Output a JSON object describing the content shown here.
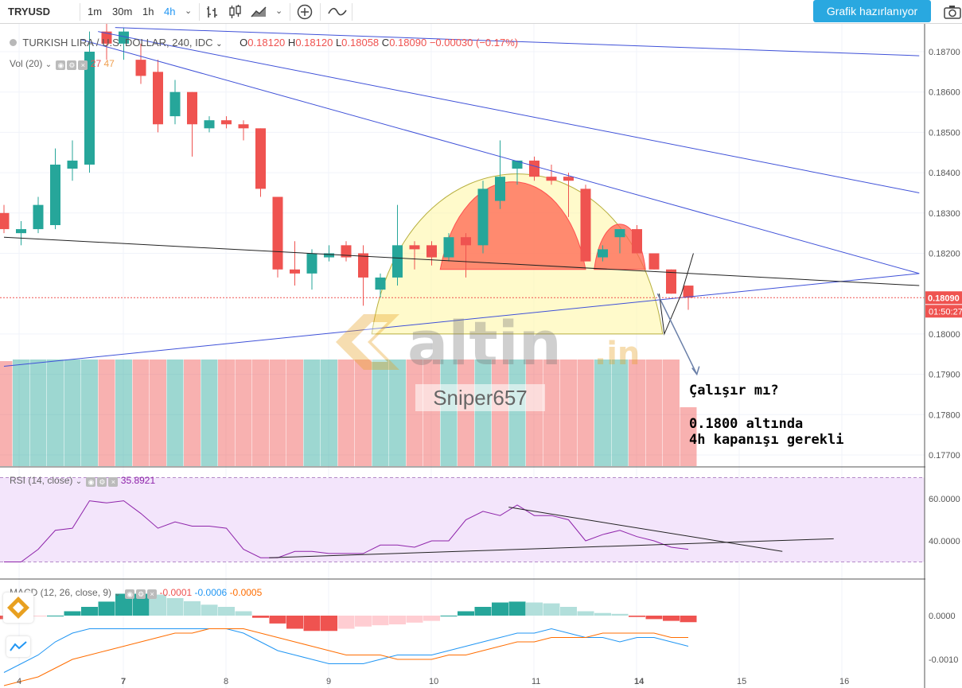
{
  "toolbar": {
    "symbol": "TRYUSD",
    "intervals": [
      "1m",
      "30m",
      "1h",
      "4h"
    ],
    "active_interval": "4h",
    "publish_label": "Grafik hazırlanıyor",
    "icons": [
      "chevron-down-icon",
      "bar-chart-icon",
      "candlestick-icon",
      "area-chart-icon",
      "plus-circle-icon",
      "compare-wave-icon",
      "camera-icon"
    ]
  },
  "legend": {
    "title": "TURKISH LIRA / U.S. DOLLAR, 240, IDC",
    "o_label": "O",
    "o_value": "0.18120",
    "h_label": "H",
    "h_value": "0.18120",
    "l_label": "L",
    "l_value": "0.18058",
    "c_label": "C",
    "c_value": "0.18090",
    "change": "−0.00030 (−0.17%)"
  },
  "volume_legend": {
    "name": "Vol (20)",
    "v1": "27",
    "v2": "47"
  },
  "rsi_legend": {
    "name": "RSI (14, close)",
    "value": "35.8921"
  },
  "macd_legend": {
    "name": "MACD (12, 26, close, 9)",
    "v1": "-0.0001",
    "v2": "-0.0006",
    "v3": "-0.0005"
  },
  "annotations": {
    "question": "Çalışır mı?",
    "line1": "0.1800 altında",
    "line2": "4h kapanışı gerekli"
  },
  "watermark": {
    "brand": "altin",
    "tld": ".in",
    "user": "Sniper657"
  },
  "colors": {
    "up": "#26a69a",
    "down": "#ef5350",
    "trend_blue": "#3f51d8",
    "rsi": "#8e24aa",
    "macd": "#2196f3",
    "signal": "#ff6d00"
  },
  "chart_data": [
    {
      "type": "candlestick",
      "title": "TURKISH LIRA / U.S. DOLLAR, 240, IDC",
      "x_tick_labels": [
        "4",
        "7",
        "8",
        "9",
        "10",
        "11",
        "14",
        "15",
        "16"
      ],
      "y_ticks": [
        "0.18700",
        "0.18600",
        "0.18500",
        "0.18400",
        "0.18300",
        "0.18200",
        "0.18000",
        "0.17900",
        "0.17800",
        "0.17700"
      ],
      "ylim": [
        0.1766,
        0.1875
      ],
      "last_price": "0.18090",
      "countdown": "01:50:27",
      "candles": [
        {
          "o": 0.183,
          "h": 0.1832,
          "l": 0.1825,
          "c": 0.1826
        },
        {
          "o": 0.1825,
          "h": 0.1828,
          "l": 0.1822,
          "c": 0.1826
        },
        {
          "o": 0.1826,
          "h": 0.1834,
          "l": 0.1825,
          "c": 0.1832
        },
        {
          "o": 0.1827,
          "h": 0.1846,
          "l": 0.1826,
          "c": 0.1842
        },
        {
          "o": 0.1841,
          "h": 0.1848,
          "l": 0.1838,
          "c": 0.1843
        },
        {
          "o": 0.1842,
          "h": 0.1875,
          "l": 0.184,
          "c": 0.187
        },
        {
          "o": 0.1875,
          "h": 0.1878,
          "l": 0.1868,
          "c": 0.1872
        },
        {
          "o": 0.1872,
          "h": 0.1876,
          "l": 0.1868,
          "c": 0.1875
        },
        {
          "o": 0.1868,
          "h": 0.1872,
          "l": 0.1862,
          "c": 0.1864
        },
        {
          "o": 0.1865,
          "h": 0.1868,
          "l": 0.185,
          "c": 0.1852
        },
        {
          "o": 0.1854,
          "h": 0.1863,
          "l": 0.1852,
          "c": 0.186
        },
        {
          "o": 0.186,
          "h": 0.186,
          "l": 0.1844,
          "c": 0.1852
        },
        {
          "o": 0.1851,
          "h": 0.1854,
          "l": 0.185,
          "c": 0.1853
        },
        {
          "o": 0.1853,
          "h": 0.1854,
          "l": 0.1851,
          "c": 0.1852
        },
        {
          "o": 0.1852,
          "h": 0.1853,
          "l": 0.1848,
          "c": 0.1851
        },
        {
          "o": 0.1851,
          "h": 0.1851,
          "l": 0.1834,
          "c": 0.1836
        },
        {
          "o": 0.1834,
          "h": 0.1834,
          "l": 0.1814,
          "c": 0.1816
        },
        {
          "o": 0.1816,
          "h": 0.1823,
          "l": 0.1812,
          "c": 0.1815
        },
        {
          "o": 0.1815,
          "h": 0.1821,
          "l": 0.1811,
          "c": 0.182
        },
        {
          "o": 0.1819,
          "h": 0.1822,
          "l": 0.1818,
          "c": 0.182
        },
        {
          "o": 0.1822,
          "h": 0.1823,
          "l": 0.1818,
          "c": 0.1819
        },
        {
          "o": 0.182,
          "h": 0.1822,
          "l": 0.1807,
          "c": 0.1814
        },
        {
          "o": 0.1811,
          "h": 0.1815,
          "l": 0.1809,
          "c": 0.1814
        },
        {
          "o": 0.1814,
          "h": 0.1832,
          "l": 0.1812,
          "c": 0.1822
        },
        {
          "o": 0.1822,
          "h": 0.1823,
          "l": 0.1816,
          "c": 0.1821
        },
        {
          "o": 0.1822,
          "h": 0.1823,
          "l": 0.1817,
          "c": 0.1819
        },
        {
          "o": 0.1819,
          "h": 0.1825,
          "l": 0.1818,
          "c": 0.1824
        },
        {
          "o": 0.1824,
          "h": 0.1825,
          "l": 0.1814,
          "c": 0.1822
        },
        {
          "o": 0.1822,
          "h": 0.1838,
          "l": 0.182,
          "c": 0.1836
        },
        {
          "o": 0.1833,
          "h": 0.1848,
          "l": 0.1831,
          "c": 0.1839
        },
        {
          "o": 0.1841,
          "h": 0.1843,
          "l": 0.1837,
          "c": 0.1843
        },
        {
          "o": 0.1843,
          "h": 0.1844,
          "l": 0.1838,
          "c": 0.1839
        },
        {
          "o": 0.1839,
          "h": 0.1842,
          "l": 0.1837,
          "c": 0.1838
        },
        {
          "o": 0.1839,
          "h": 0.184,
          "l": 0.1829,
          "c": 0.1838
        },
        {
          "o": 0.1836,
          "h": 0.1837,
          "l": 0.1818,
          "c": 0.1818
        },
        {
          "o": 0.1819,
          "h": 0.1822,
          "l": 0.1818,
          "c": 0.1821
        },
        {
          "o": 0.1824,
          "h": 0.1826,
          "l": 0.182,
          "c": 0.1826
        },
        {
          "o": 0.1826,
          "h": 0.1827,
          "l": 0.182,
          "c": 0.182
        },
        {
          "o": 0.182,
          "h": 0.182,
          "l": 0.1816,
          "c": 0.1816
        },
        {
          "o": 0.1816,
          "h": 0.1816,
          "l": 0.181,
          "c": 0.181
        },
        {
          "o": 0.1812,
          "h": 0.1812,
          "l": 0.1806,
          "c": 0.1809
        }
      ],
      "volume": [
        {
          "v": 0.66,
          "up": false
        },
        {
          "v": 0.67,
          "up": true
        },
        {
          "v": 0.67,
          "up": true
        },
        {
          "v": 0.67,
          "up": true
        },
        {
          "v": 0.67,
          "up": true
        },
        {
          "v": 0.67,
          "up": true
        },
        {
          "v": 0.67,
          "up": false
        },
        {
          "v": 0.67,
          "up": true
        },
        {
          "v": 0.67,
          "up": false
        },
        {
          "v": 0.67,
          "up": false
        },
        {
          "v": 0.67,
          "up": true
        },
        {
          "v": 0.67,
          "up": false
        },
        {
          "v": 0.67,
          "up": true
        },
        {
          "v": 0.67,
          "up": false
        },
        {
          "v": 0.67,
          "up": false
        },
        {
          "v": 0.67,
          "up": false
        },
        {
          "v": 0.67,
          "up": false
        },
        {
          "v": 0.67,
          "up": false
        },
        {
          "v": 0.67,
          "up": true
        },
        {
          "v": 0.67,
          "up": true
        },
        {
          "v": 0.67,
          "up": false
        },
        {
          "v": 0.67,
          "up": false
        },
        {
          "v": 0.67,
          "up": true
        },
        {
          "v": 0.67,
          "up": true
        },
        {
          "v": 0.67,
          "up": false
        },
        {
          "v": 0.67,
          "up": false
        },
        {
          "v": 0.67,
          "up": true
        },
        {
          "v": 0.67,
          "up": false
        },
        {
          "v": 0.67,
          "up": true
        },
        {
          "v": 0.67,
          "up": false
        },
        {
          "v": 0.67,
          "up": true
        },
        {
          "v": 0.67,
          "up": false
        },
        {
          "v": 0.67,
          "up": false
        },
        {
          "v": 0.67,
          "up": false
        },
        {
          "v": 0.67,
          "up": false
        },
        {
          "v": 0.67,
          "up": true
        },
        {
          "v": 0.67,
          "up": true
        },
        {
          "v": 0.67,
          "up": false
        },
        {
          "v": 0.67,
          "up": false
        },
        {
          "v": 0.67,
          "up": false
        },
        {
          "v": 0.37,
          "up": false
        }
      ],
      "trendlines": [
        {
          "kind": "blue",
          "from": [
            6.5,
            0.1876
          ],
          "to": [
            53.5,
            0.1869
          ]
        },
        {
          "kind": "blue",
          "from": [
            5.5,
            0.1875
          ],
          "to": [
            53.5,
            0.1835
          ]
        },
        {
          "kind": "blue",
          "from": [
            4.5,
            0.1873
          ],
          "to": [
            53.5,
            0.1815
          ]
        },
        {
          "kind": "blue",
          "from": [
            0,
            0.1792
          ],
          "to": [
            53.5,
            0.1815
          ]
        },
        {
          "kind": "black",
          "from": [
            0,
            0.1824
          ],
          "to": [
            53.5,
            0.1812
          ]
        }
      ],
      "patterns": [
        {
          "kind": "cup",
          "label": "",
          "x0": 21.5,
          "x1": 38.5,
          "top": 0.1847,
          "bottom": 0.18
        },
        {
          "kind": "head",
          "x0": 25.5,
          "x1": 34.0,
          "top": 0.1843,
          "base": 0.1816
        },
        {
          "kind": "shoulder",
          "x0": 34.5,
          "x1": 37.5,
          "top": 0.1829,
          "base": 0.1816
        }
      ],
      "projection": {
        "from": [
          38.2,
          0.181
        ],
        "to": [
          40.5,
          0.179
        ]
      },
      "zigzag": [
        [
          38.3,
          0.181
        ],
        [
          38.6,
          0.18
        ],
        [
          39.6,
          0.181
        ],
        [
          40.3,
          0.182
        ]
      ]
    },
    {
      "type": "line",
      "title": "RSI (14, close)",
      "y_ticks": [
        "60.0000",
        "40.0000"
      ],
      "ylim": [
        25,
        70
      ],
      "band": [
        30,
        70
      ],
      "series": [
        {
          "name": "RSI",
          "values": [
            30,
            30,
            36,
            45,
            46,
            59,
            58,
            59,
            53,
            46,
            49,
            47,
            47,
            46,
            36,
            32,
            32,
            35,
            35,
            34,
            34,
            34,
            38,
            38,
            37,
            40,
            40,
            50,
            54,
            52,
            57,
            52,
            52,
            50,
            40,
            43,
            45,
            42,
            40,
            37,
            36
          ]
        }
      ],
      "trendlines": [
        {
          "from": [
            15.5,
            32
          ],
          "to": [
            48.5,
            41
          ]
        },
        {
          "from": [
            29.5,
            56
          ],
          "to": [
            45.5,
            35
          ]
        }
      ]
    },
    {
      "type": "bar",
      "title": "MACD (12, 26, close, 9)",
      "y_ticks": [
        "0.0000",
        "-0.0010"
      ],
      "ylim": [
        -0.00125,
        0.00065
      ],
      "histogram": [
        -8e-05,
        -6e-05,
        -2e-05,
        0.0,
        0.0001,
        0.0002,
        0.00032,
        0.0005,
        0.0005,
        0.00048,
        0.0004,
        0.00033,
        0.00025,
        0.0002,
        0.0001,
        -5e-05,
        -0.00018,
        -0.0003,
        -0.00035,
        -0.00035,
        -0.0003,
        -0.00025,
        -0.00022,
        -0.0002,
        -0.00016,
        -0.00012,
        0.0,
        0.0001,
        0.0002,
        0.0003,
        0.00032,
        0.0003,
        0.00028,
        0.0002,
        0.0001,
        6e-05,
        4e-05,
        -3e-05,
        -8e-05,
        -0.00012,
        -0.00015
      ],
      "macd": [
        -0.0013,
        -0.0011,
        -0.0009,
        -0.0006,
        -0.0004,
        -0.0003,
        -0.0003,
        -0.0003,
        -0.0003,
        -0.0003,
        -0.0003,
        -0.0003,
        -0.0003,
        -0.0003,
        -0.0004,
        -0.0006,
        -0.0008,
        -0.0009,
        -0.001,
        -0.0011,
        -0.0011,
        -0.0011,
        -0.001,
        -0.0009,
        -0.0009,
        -0.0009,
        -0.0008,
        -0.0007,
        -0.0006,
        -0.0005,
        -0.0004,
        -0.0004,
        -0.0003,
        -0.0004,
        -0.0005,
        -0.0005,
        -0.0006,
        -0.0005,
        -0.0005,
        -0.0006,
        -0.0007
      ],
      "signal": [
        -0.0016,
        -0.0015,
        -0.0014,
        -0.0012,
        -0.001,
        -0.0009,
        -0.0008,
        -0.0007,
        -0.0006,
        -0.0005,
        -0.0004,
        -0.0004,
        -0.0003,
        -0.0003,
        -0.0003,
        -0.0004,
        -0.0005,
        -0.0006,
        -0.0007,
        -0.0008,
        -0.0009,
        -0.0009,
        -0.0009,
        -0.001,
        -0.001,
        -0.001,
        -0.0009,
        -0.0009,
        -0.0008,
        -0.0007,
        -0.0006,
        -0.0006,
        -0.0005,
        -0.0005,
        -0.0005,
        -0.0004,
        -0.0004,
        -0.0004,
        -0.0004,
        -0.0005,
        -0.0005
      ]
    }
  ]
}
